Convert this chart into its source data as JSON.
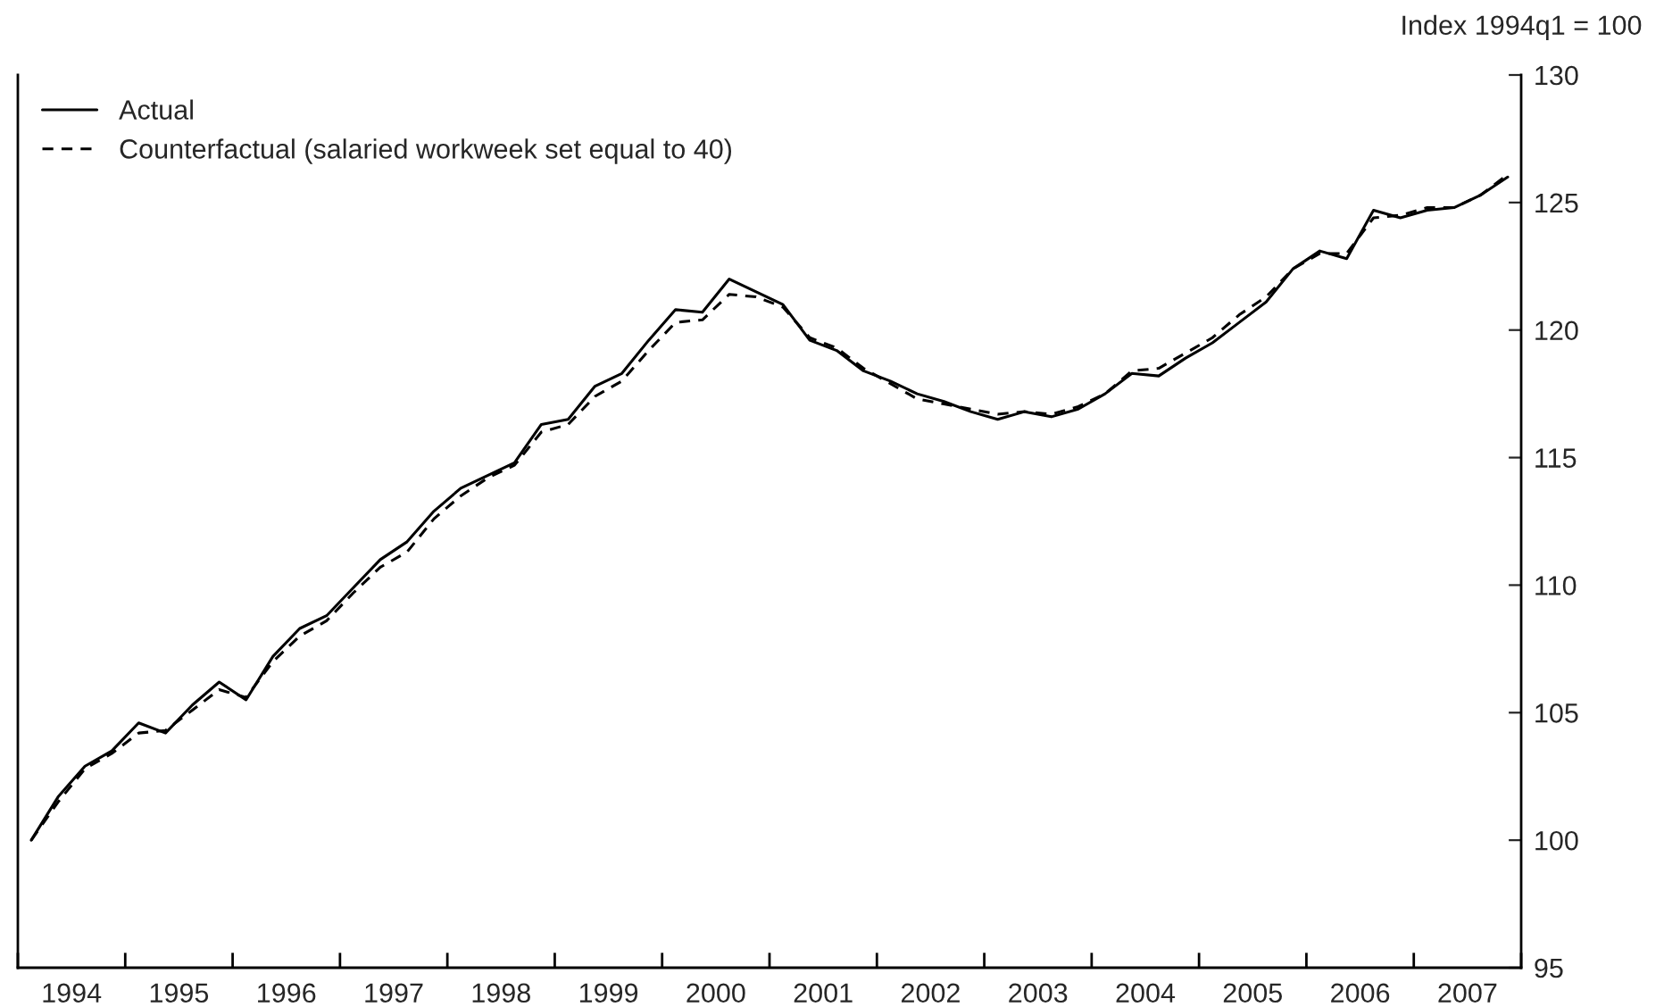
{
  "chart_data": {
    "type": "line",
    "ylabel": "Index 1994q1 = 100",
    "x": [
      1994.125,
      1994.375,
      1994.625,
      1994.875,
      1995.125,
      1995.375,
      1995.625,
      1995.875,
      1996.125,
      1996.375,
      1996.625,
      1996.875,
      1997.125,
      1997.375,
      1997.625,
      1997.875,
      1998.125,
      1998.375,
      1998.625,
      1998.875,
      1999.125,
      1999.375,
      1999.625,
      1999.875,
      2000.125,
      2000.375,
      2000.625,
      2000.875,
      2001.125,
      2001.375,
      2001.625,
      2001.875,
      2002.125,
      2002.375,
      2002.625,
      2002.875,
      2003.125,
      2003.375,
      2003.625,
      2003.875,
      2004.125,
      2004.375,
      2004.625,
      2004.875,
      2005.125,
      2005.375,
      2005.625,
      2005.875,
      2006.125,
      2006.375,
      2006.625,
      2006.875,
      2007.125,
      2007.375,
      2007.625,
      2007.875
    ],
    "series": [
      {
        "name": "Actual",
        "color": "#000000",
        "line_style": "solid",
        "values": [
          100.0,
          101.7,
          102.9,
          103.5,
          104.6,
          104.2,
          105.3,
          106.2,
          105.5,
          107.2,
          108.3,
          108.8,
          109.9,
          111.0,
          111.7,
          112.9,
          113.8,
          114.3,
          114.8,
          116.3,
          116.5,
          117.8,
          118.3,
          119.6,
          120.8,
          120.7,
          122.0,
          121.5,
          121.0,
          119.6,
          119.2,
          118.4,
          118.0,
          117.5,
          117.2,
          116.8,
          116.5,
          116.8,
          116.6,
          116.9,
          117.5,
          118.3,
          118.2,
          118.9,
          119.5,
          120.3,
          121.1,
          122.4,
          123.1,
          122.8,
          124.7,
          124.4,
          124.7,
          124.8,
          125.3,
          126.0
        ]
      },
      {
        "name": "Counterfactual (salaried workweek set equal to 40)",
        "color": "#000000",
        "line_style": "dashed",
        "values": [
          100.0,
          101.5,
          102.8,
          103.4,
          104.2,
          104.3,
          105.1,
          105.9,
          105.6,
          107.0,
          108.0,
          108.6,
          109.7,
          110.7,
          111.3,
          112.6,
          113.5,
          114.2,
          114.7,
          116.0,
          116.3,
          117.4,
          118.0,
          119.2,
          120.3,
          120.4,
          121.4,
          121.3,
          120.9,
          119.7,
          119.3,
          118.5,
          117.9,
          117.3,
          117.1,
          116.9,
          116.7,
          116.8,
          116.7,
          117.0,
          117.5,
          118.4,
          118.5,
          119.1,
          119.7,
          120.6,
          121.3,
          122.4,
          123.0,
          123.0,
          124.4,
          124.5,
          124.8,
          124.8,
          125.3,
          126.1
        ]
      }
    ],
    "xlim": [
      1994,
      2008
    ],
    "xticks": [
      {
        "value": 1994,
        "label": null
      },
      {
        "value": 1995,
        "label": null
      },
      {
        "value": 1996,
        "label": null
      },
      {
        "value": 1997,
        "label": null
      },
      {
        "value": 1998,
        "label": null
      },
      {
        "value": 1999,
        "label": null
      },
      {
        "value": 2000,
        "label": null
      },
      {
        "value": 2001,
        "label": null
      },
      {
        "value": 2002,
        "label": null
      },
      {
        "value": 2003,
        "label": null
      },
      {
        "value": 2004,
        "label": null
      },
      {
        "value": 2005,
        "label": null
      },
      {
        "value": 2006,
        "label": null
      },
      {
        "value": 2007,
        "label": null
      },
      {
        "value": 2008,
        "label": null
      },
      {
        "value": 1994.5,
        "label": "1994"
      },
      {
        "value": 1995.5,
        "label": "1995"
      },
      {
        "value": 1996.5,
        "label": "1996"
      },
      {
        "value": 1997.5,
        "label": "1997"
      },
      {
        "value": 1998.5,
        "label": "1998"
      },
      {
        "value": 1999.5,
        "label": "1999"
      },
      {
        "value": 2000.5,
        "label": "2000"
      },
      {
        "value": 2001.5,
        "label": "2001"
      },
      {
        "value": 2002.5,
        "label": "2002"
      },
      {
        "value": 2003.5,
        "label": "2003"
      },
      {
        "value": 2004.5,
        "label": "2004"
      },
      {
        "value": 2005.5,
        "label": "2005"
      },
      {
        "value": 2006.5,
        "label": "2006"
      },
      {
        "value": 2007.5,
        "label": "2007"
      }
    ],
    "ylim": [
      95,
      130
    ],
    "yticks": [
      95,
      100,
      105,
      110,
      115,
      120,
      125,
      130
    ],
    "grid": false,
    "legend": "top left"
  }
}
